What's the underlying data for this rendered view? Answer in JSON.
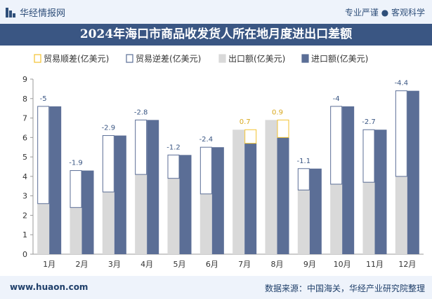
{
  "header": {
    "brand": "华经情报网",
    "tagline": "专业严谨 ● 客观科学"
  },
  "footer": {
    "url": "www.huaon.com",
    "source": "数据来源：中国海关，华经产业研究院整理"
  },
  "colors": {
    "export": "#d9d9d9",
    "import": "#5b6e96",
    "surplus_border": "#f2c230",
    "deficit_border": "#5b6e96",
    "header_bg": "#3a5683"
  },
  "chart_data": {
    "type": "bar",
    "title": "2024年海口市商品收发货人所在地月度进出口差额",
    "categories": [
      "1月",
      "2月",
      "3月",
      "4月",
      "5月",
      "6月",
      "7月",
      "8月",
      "9月",
      "10月",
      "11月",
      "12月"
    ],
    "series": [
      {
        "name": "贸易顺差(亿美元)",
        "values": [
          null,
          null,
          null,
          null,
          null,
          null,
          0.7,
          0.9,
          null,
          null,
          null,
          null
        ]
      },
      {
        "name": "贸易逆差(亿美元)",
        "values": [
          -5,
          -1.9,
          -2.9,
          -2.8,
          -1.2,
          -2.4,
          null,
          null,
          -1.1,
          -4,
          -2.7,
          -4.4
        ]
      },
      {
        "name": "出口额(亿美元)",
        "values": [
          2.6,
          2.4,
          3.2,
          4.1,
          3.9,
          3.1,
          6.4,
          6.9,
          3.3,
          3.6,
          3.7,
          4.0
        ]
      },
      {
        "name": "进口额(亿美元)",
        "values": [
          7.6,
          4.3,
          6.1,
          6.9,
          5.1,
          5.5,
          5.7,
          6.0,
          4.4,
          7.6,
          6.4,
          8.4
        ]
      }
    ],
    "data_labels": [
      "-5",
      "-1.9",
      "-2.9",
      "-2.8",
      "-1.2",
      "-2.4",
      "0.7",
      "0.9",
      "-1.1",
      "-4",
      "-2.7",
      "-4.4"
    ],
    "y_ticks": [
      "0",
      "1",
      "2",
      "3",
      "4",
      "5",
      "6",
      "7",
      "8",
      "9"
    ],
    "ylim": [
      0,
      9
    ],
    "legend_position": "top-left",
    "grid": false
  }
}
